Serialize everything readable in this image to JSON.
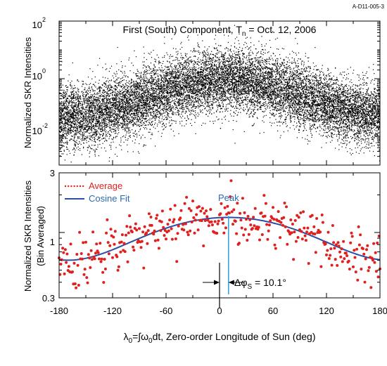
{
  "figure_id": "A-D11-005-3",
  "colors": {
    "scatter": "#000000",
    "average": "#e0201e",
    "fit": "#2b4ea2",
    "peak": "#2aa0d8",
    "axis": "#000000"
  },
  "chart_data": [
    {
      "type": "scatter",
      "title_main": "First (South) Component, T",
      "title_sub": "n",
      "title_rest": " = Oct. 12, 2006",
      "ylabel": "Normalized SKR Intensities",
      "yscale": "log",
      "ylim": [
        0.001,
        100
      ],
      "xlim": [
        -180,
        180
      ],
      "y_ticks": [
        {
          "base": "10",
          "exp": "2",
          "value": 100
        },
        {
          "base": "10",
          "exp": "0",
          "value": 1
        },
        {
          "base": "10",
          "exp": "-2",
          "value": 0.01
        }
      ],
      "scatter_model": {
        "n_points": 14000,
        "log10_median_range": [
          -1.3,
          -0.05
        ],
        "log10_spread": 0.55,
        "log10_clip": [
          -2.9,
          1.95
        ]
      }
    },
    {
      "type": "scatter",
      "ylabel": "Normalized SKR Intensities",
      "ylabel2": "(Bin Averaged)",
      "yscale": "log",
      "ylim": [
        0.3,
        3
      ],
      "xlim": [
        -180,
        180
      ],
      "y_ticks": [
        {
          "label": "3",
          "value": 3
        },
        {
          "label": "1",
          "value": 1
        },
        {
          "label": "0.3",
          "value": 0.3
        }
      ],
      "x_ticks": [
        -180,
        -120,
        -60,
        0,
        60,
        120,
        180
      ],
      "x_tick_labels": [
        "-180",
        "-120",
        "-60",
        "0",
        "60",
        "120",
        "180"
      ],
      "xlabel_parts": {
        "lambda": "λ",
        "sub0": "0",
        "eq": "=∫ω",
        "sub1": "0",
        "rest": "dt, Zero-order Longitude of Sun (deg)"
      },
      "legend": {
        "placement": "top-left",
        "items": [
          {
            "label": "Average",
            "style": "dotted"
          },
          {
            "label": "Cosine Fit",
            "style": "solid"
          }
        ]
      },
      "series": [
        {
          "name": "Cosine Fit",
          "kind": "line",
          "model": "cosine",
          "amplitude": 0.36,
          "mean": 0.96,
          "phase_deg": 10.1,
          "x_range": [
            -180,
            180
          ]
        },
        {
          "name": "Average",
          "kind": "points",
          "x_step": 1,
          "scatter_around_fit_frac": 0.23
        }
      ],
      "annotations": {
        "peak_label": "Peak",
        "peak_x": 10.1,
        "zero_x": 0,
        "delta_text": "Δφ",
        "delta_sub": "S",
        "delta_value": " = 10.1°"
      }
    }
  ]
}
